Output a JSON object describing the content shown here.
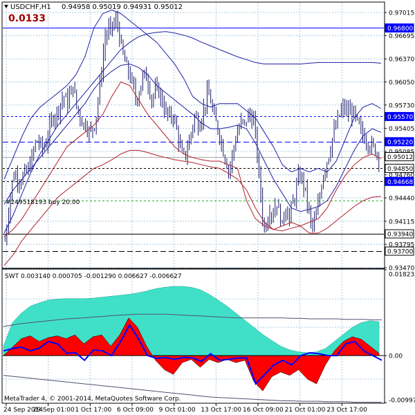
{
  "header": {
    "symbol": "USDCHF,H1",
    "ohlc": "0.94958 0.95019 0.94931 0.95012",
    "spread_value": "0.0133",
    "spread_color": "#a00000"
  },
  "order_label": "#249518193 buy 20.00",
  "sub_header": "SWT 0.003140 0.000705 -0.001290 0.006627 -0.006627",
  "copyright": "MetaTrader 4, © 2001-2014, MetaQuotes Software Corp.",
  "chart_data": [
    {
      "type": "candlestick",
      "title": "USDCHF,H1",
      "ylim": [
        0.9347,
        0.9715
      ],
      "y_ticks": [
        "0.97015",
        "0.96695",
        "0.96370",
        "0.96050",
        "0.95730",
        "0.95405",
        "0.95085",
        "0.94760",
        "0.94440",
        "0.94115",
        "0.93795",
        "0.93470"
      ],
      "x_ticks": [
        "24 Sep 2014",
        "29 Sep 01:00",
        "1 Oct 17:00",
        "6 Oct 09:00",
        "9 Oct 01:00",
        "13 Oct 17:00",
        "16 Oct 09:00",
        "21 Oct 01:00",
        "23 Oct 17:00"
      ],
      "price_path": [
        0.9385,
        0.942,
        0.946,
        0.9478,
        0.9472,
        0.9468,
        0.9476,
        0.948,
        0.949,
        0.9505,
        0.9525,
        0.952,
        0.9512,
        0.9518,
        0.9535,
        0.9552,
        0.956,
        0.9565,
        0.9578,
        0.9585,
        0.9575,
        0.959,
        0.96,
        0.957,
        0.956,
        0.9545,
        0.9548,
        0.9535,
        0.954,
        0.955,
        0.9585,
        0.962,
        0.9665,
        0.9675,
        0.968,
        0.9685,
        0.969,
        0.966,
        0.964,
        0.9625,
        0.9615,
        0.96,
        0.958,
        0.959,
        0.961,
        0.9615,
        0.9605,
        0.958,
        0.959,
        0.9595,
        0.9585,
        0.957,
        0.956,
        0.9555,
        0.956,
        0.954,
        0.952,
        0.95,
        0.9505,
        0.952,
        0.954,
        0.956,
        0.9545,
        0.9555,
        0.957,
        0.959,
        0.958,
        0.9555,
        0.9545,
        0.953,
        0.951,
        0.9495,
        0.948,
        0.9505,
        0.9525,
        0.954,
        0.955,
        0.9545,
        0.956,
        0.9555,
        0.955,
        0.95,
        0.9455,
        0.94,
        0.941,
        0.943,
        0.942,
        0.944,
        0.9425,
        0.9405,
        0.9435,
        0.9415,
        0.943,
        0.9445,
        0.947,
        0.9475,
        0.946,
        0.944,
        0.941,
        0.9405,
        0.942,
        0.9445,
        0.9475,
        0.949,
        0.9505,
        0.9525,
        0.954,
        0.9555,
        0.9565,
        0.957,
        0.956,
        0.9565,
        0.956,
        0.9548,
        0.954,
        0.953,
        0.9525,
        0.9518,
        0.9515,
        0.951,
        0.9501
      ],
      "price_amplitude": 0.0017,
      "lines": [
        {
          "name": "upper_band",
          "color": "#1f1fa8",
          "values": [
            0.947,
            0.95,
            0.953,
            0.9555,
            0.957,
            0.958,
            0.959,
            0.96,
            0.9615,
            0.964,
            0.968,
            0.97,
            0.9705,
            0.97,
            0.969,
            0.968,
            0.967,
            0.966,
            0.9645,
            0.963,
            0.961,
            0.9585,
            0.9575,
            0.957,
            0.9575,
            0.9575,
            0.9575,
            0.9565,
            0.9555,
            0.9535,
            0.9515,
            0.949,
            0.948,
            0.9485,
            0.948,
            0.9485,
            0.948,
            0.9495,
            0.9525,
            0.9555,
            0.957,
            0.9575,
            0.9568
          ]
        },
        {
          "name": "middle_band",
          "color": "#1f1fa8",
          "values": [
            0.9435,
            0.9455,
            0.947,
            0.9485,
            0.95,
            0.9515,
            0.953,
            0.9545,
            0.956,
            0.9575,
            0.9595,
            0.961,
            0.962,
            0.9628,
            0.963,
            0.9625,
            0.9615,
            0.96,
            0.959,
            0.958,
            0.957,
            0.956,
            0.9548,
            0.954,
            0.954,
            0.9542,
            0.9545,
            0.954,
            0.952,
            0.9495,
            0.947,
            0.945,
            0.943,
            0.9425,
            0.9428,
            0.9432,
            0.944,
            0.946,
            0.9485,
            0.951,
            0.953,
            0.954,
            0.9535
          ]
        },
        {
          "name": "long_ma",
          "color": "#1f1fa8",
          "values": [
            0.9395,
            0.942,
            0.945,
            0.948,
            0.9505,
            0.9525,
            0.9545,
            0.956,
            0.9575,
            0.959,
            0.9605,
            0.962,
            0.9635,
            0.965,
            0.966,
            0.9668,
            0.9672,
            0.9674,
            0.9675,
            0.9673,
            0.967,
            0.9666,
            0.966,
            0.9655,
            0.965,
            0.9645,
            0.964,
            0.9636,
            0.9632,
            0.963,
            0.963,
            0.963,
            0.963,
            0.963,
            0.9631,
            0.9632,
            0.9632,
            0.9632,
            0.9632,
            0.9632,
            0.9632,
            0.9632,
            0.9631
          ]
        },
        {
          "name": "mid_envelope",
          "color": "#b0202a",
          "values": [
            0.939,
            0.94,
            0.9415,
            0.9435,
            0.9455,
            0.9475,
            0.9495,
            0.9515,
            0.9525,
            0.9535,
            0.9545,
            0.956,
            0.9585,
            0.9605,
            0.96,
            0.958,
            0.956,
            0.9545,
            0.953,
            0.9515,
            0.9505,
            0.95,
            0.9497,
            0.9495,
            0.9495,
            0.949,
            0.9485,
            0.944,
            0.9415,
            0.9405,
            0.94,
            0.9405,
            0.941,
            0.9405,
            0.941,
            0.9415,
            0.943,
            0.9455,
            0.9475,
            0.949,
            0.95,
            0.9505,
            0.9498
          ]
        },
        {
          "name": "lower_band",
          "color": "#b0202a",
          "values": [
            0.935,
            0.9365,
            0.9385,
            0.94,
            0.9415,
            0.943,
            0.9445,
            0.9455,
            0.9465,
            0.9475,
            0.9485,
            0.949,
            0.9497,
            0.9505,
            0.951,
            0.951,
            0.9507,
            0.9503,
            0.95,
            0.9497,
            0.9495,
            0.9493,
            0.949,
            0.9487,
            0.9485,
            0.9478,
            0.947,
            0.9455,
            0.943,
            0.941,
            0.94,
            0.9398,
            0.9402,
            0.9405,
            0.9395,
            0.9395,
            0.9402,
            0.9412,
            0.9422,
            0.9432,
            0.944,
            0.9445,
            0.9446
          ]
        }
      ],
      "levels": [
        {
          "value": 0.968,
          "label": "0.96800",
          "color": "#0000ff",
          "style": "solid",
          "box": "#0000ff",
          "text": "#ffffff"
        },
        {
          "value": 0.9557,
          "label": "0.95570",
          "color": "#0000ff",
          "style": "dash",
          "box": "#0000ff",
          "text": "#ffffff"
        },
        {
          "value": 0.9522,
          "label": "0.95220",
          "color": "#0000ff",
          "style": "dashlong",
          "box": "#0000ff",
          "text": "#ffffff"
        },
        {
          "value": 0.95012,
          "label": "0.95012",
          "color": "#a8a8a8",
          "style": "solid",
          "box": "#ffffff",
          "text": "#000000"
        },
        {
          "value": 0.9485,
          "label": "0.94850",
          "color": "#000000",
          "style": "dash",
          "box": "#ffffff",
          "text": "#000000"
        },
        {
          "value": 0.94668,
          "label": "0.94668",
          "color": "#000000",
          "style": "dash",
          "box": "#0000ff",
          "text": "#ffffff"
        },
        {
          "value": 0.944,
          "label": "",
          "color": "#2faa2f",
          "style": "dash",
          "box": "",
          "text": ""
        },
        {
          "value": 0.9394,
          "label": "0.93940",
          "color": "#000000",
          "style": "solid",
          "box": "#ffffff",
          "text": "#000000"
        },
        {
          "value": 0.937,
          "label": "0.93700",
          "color": "#000000",
          "style": "dashlong",
          "box": "#ffffff",
          "text": "#000000"
        }
      ]
    },
    {
      "type": "area",
      "title": "SWT",
      "ylim": [
        -0.009972,
        0.01823
      ],
      "y_ticks": [
        "0.01823",
        "0.00",
        "-0.009972"
      ],
      "series": [
        {
          "name": "cyan_area",
          "color": "#40e0c8",
          "values": [
            0.002,
            0.007,
            0.009,
            0.0105,
            0.0112,
            0.0118,
            0.012,
            0.0121,
            0.0121,
            0.0121,
            0.0122,
            0.0124,
            0.0126,
            0.0128,
            0.013,
            0.0133,
            0.0137,
            0.0142,
            0.0145,
            0.0147,
            0.0147,
            0.0145,
            0.014,
            0.013,
            0.0118,
            0.0105,
            0.009,
            0.0075,
            0.006,
            0.0045,
            0.0032,
            0.002,
            0.0012,
            0.0008,
            0.0006,
            0.0008,
            0.0015,
            0.003,
            0.0045,
            0.006,
            0.007,
            0.0074,
            0.0072
          ]
        },
        {
          "name": "red_area",
          "color": "#ff0000",
          "values": [
            0.0,
            0.0018,
            0.0036,
            0.0042,
            0.003,
            0.0038,
            0.0042,
            0.0036,
            0.0044,
            0.0025,
            0.004,
            0.0044,
            0.002,
            0.0044,
            0.008,
            0.006,
            0.002,
            -0.001,
            -0.003,
            -0.004,
            -0.0015,
            -0.0008,
            -0.0025,
            -0.0008,
            -0.0015,
            -0.0008,
            -0.0015,
            -0.001,
            -0.0055,
            -0.0075,
            -0.0045,
            -0.0035,
            -0.0042,
            -0.003,
            -0.005,
            -0.006,
            -0.002,
            0.001,
            0.003,
            0.004,
            0.0035,
            0.002,
            0.0005
          ]
        },
        {
          "name": "signal_line",
          "color": "#0000ff",
          "values": [
            0.001,
            0.0015,
            0.0018,
            0.001,
            0.0016,
            0.003,
            0.0025,
            0.0005,
            0.0006,
            -0.001,
            0.0012,
            0.001,
            0.0,
            0.003,
            0.0065,
            0.0035,
            0.0,
            -0.0006,
            -0.0004,
            -0.0008,
            -0.0004,
            -0.0005,
            -0.0012,
            0.0004,
            -0.001,
            -0.0008,
            -0.0005,
            -0.0005,
            -0.006,
            -0.004,
            -0.002,
            -0.001,
            -0.002,
            0.0,
            0.0006,
            0.0004,
            0.0,
            0.0,
            0.0025,
            0.003,
            0.001,
            0.0,
            -0.001
          ]
        },
        {
          "name": "upper_envelope",
          "color": "#505070",
          "values": [
            0.0062,
            0.0065,
            0.0068,
            0.007,
            0.0072,
            0.0074,
            0.0076,
            0.0078,
            0.0079,
            0.008,
            0.0082,
            0.0083,
            0.0085,
            0.0086,
            0.0087,
            0.0088,
            0.0088,
            0.0088,
            0.0088,
            0.0087,
            0.0086,
            0.0085,
            0.0084,
            0.0083,
            0.0082,
            0.0081,
            0.008,
            0.008,
            0.008,
            0.008,
            0.008,
            0.008,
            0.0079,
            0.0079,
            0.0078,
            0.0078,
            0.0078,
            0.0078,
            0.0077,
            0.0077,
            0.0077,
            0.0076,
            0.0076
          ]
        },
        {
          "name": "lower_envelope",
          "color": "#505070",
          "values": [
            -0.0042,
            -0.0044,
            -0.0046,
            -0.0048,
            -0.005,
            -0.0052,
            -0.0054,
            -0.0056,
            -0.0058,
            -0.006,
            -0.0062,
            -0.0064,
            -0.0066,
            -0.0068,
            -0.007,
            -0.0072,
            -0.0074,
            -0.0076,
            -0.0078,
            -0.008,
            -0.0082,
            -0.0084,
            -0.0086,
            -0.0088,
            -0.0089,
            -0.009,
            -0.0091,
            -0.0092,
            -0.0093,
            -0.0094,
            -0.0095,
            -0.0096,
            -0.0096,
            -0.0097,
            -0.0097,
            -0.0097,
            -0.0098,
            -0.0098,
            -0.0098,
            -0.0099,
            -0.0099,
            -0.0099,
            -0.0099
          ]
        }
      ]
    }
  ]
}
